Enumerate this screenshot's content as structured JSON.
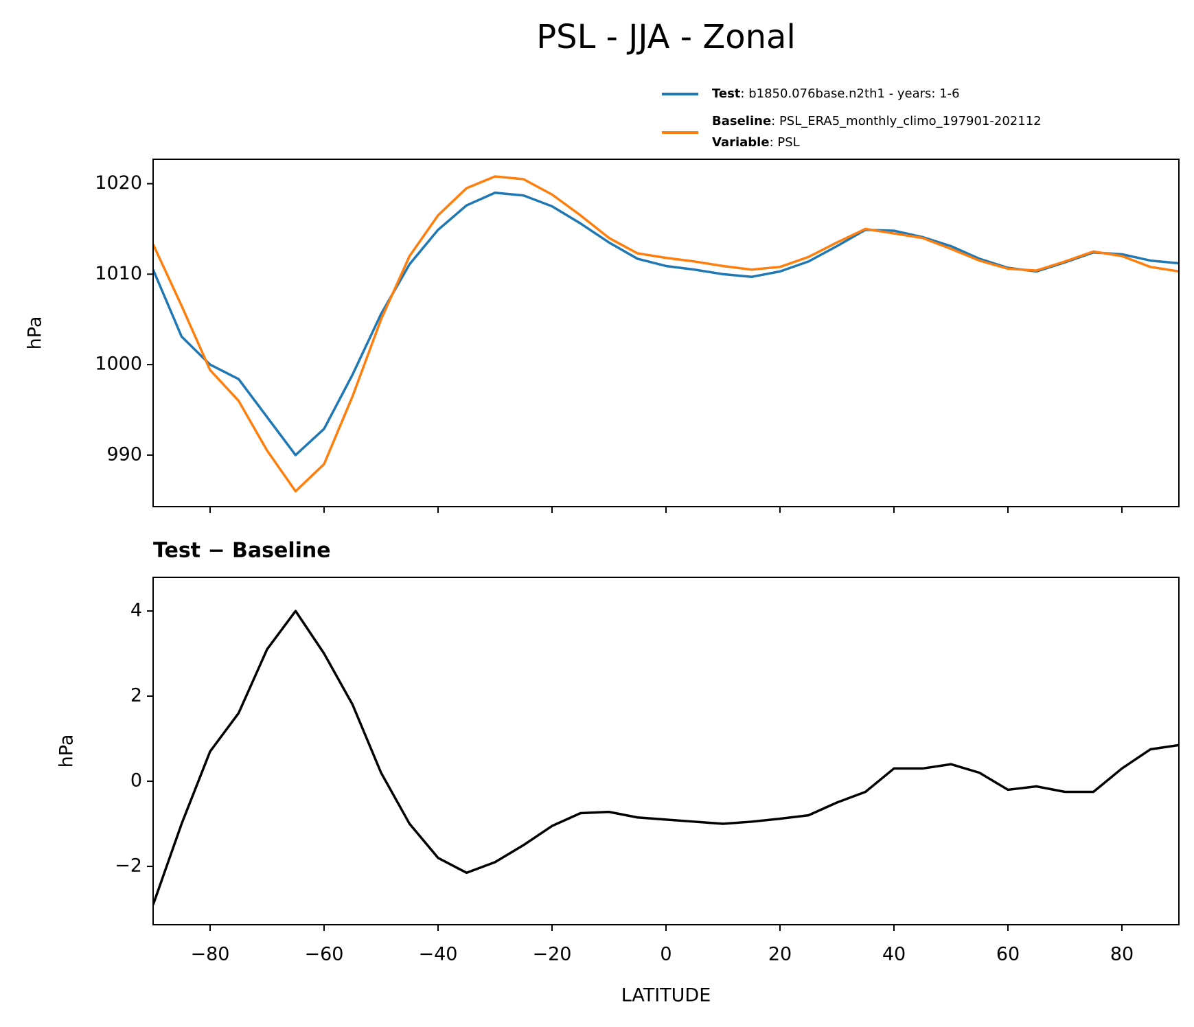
{
  "chart_data": [
    {
      "type": "line",
      "title": "PSL - JJA - Zonal",
      "ylabel": "hPa",
      "x": [
        -90,
        -85,
        -80,
        -75,
        -70,
        -65,
        -60,
        -55,
        -50,
        -45,
        -40,
        -35,
        -30,
        -25,
        -20,
        -15,
        -10,
        -5,
        0,
        5,
        10,
        15,
        20,
        25,
        30,
        35,
        40,
        45,
        50,
        55,
        60,
        65,
        70,
        75,
        80,
        85,
        90
      ],
      "series": [
        {
          "name": "Test",
          "info": ": b1850.076base.n2th1 - years: 1-6",
          "color": "#1f77b4",
          "values": [
            1010.5,
            1003.1,
            1000.0,
            998.4,
            994.2,
            990.0,
            992.9,
            998.9,
            1005.6,
            1011.1,
            1014.9,
            1017.6,
            1019.0,
            1018.7,
            1017.5,
            1015.6,
            1013.5,
            1011.7,
            1010.9,
            1010.5,
            1010.0,
            1009.7,
            1010.3,
            1011.4,
            1013.1,
            1014.9,
            1014.8,
            1014.1,
            1013.1,
            1011.7,
            1010.7,
            1010.3,
            1011.3,
            1012.4,
            1012.2,
            1011.5,
            1011.2
          ]
        },
        {
          "name": "Baseline",
          "info": ": PSL_ERA5_monthly_climo_197901-202112",
          "color": "#ff7f0e",
          "values": [
            1013.3,
            1006.5,
            999.4,
            996.0,
            990.5,
            986.0,
            989.0,
            996.5,
            1005.0,
            1012.0,
            1016.5,
            1019.5,
            1020.8,
            1020.5,
            1018.8,
            1016.5,
            1014.0,
            1012.3,
            1011.8,
            1011.4,
            1010.9,
            1010.5,
            1010.8,
            1011.9,
            1013.5,
            1015.0,
            1014.5,
            1014.0,
            1012.8,
            1011.5,
            1010.6,
            1010.4,
            1011.4,
            1012.5,
            1012.0,
            1010.8,
            1010.3
          ]
        }
      ],
      "legend_extra": {
        "name": "Variable",
        "info": ": PSL"
      },
      "xlim": [
        -90,
        90
      ],
      "xticks": [
        -80,
        -60,
        -40,
        -20,
        0,
        20,
        40,
        60,
        80
      ],
      "ylim": [
        984.3,
        1022.7
      ],
      "yticks": [
        990,
        1000,
        1010,
        1020
      ]
    },
    {
      "type": "line",
      "title": "Test − Baseline",
      "ylabel": "hPa",
      "xlabel": "LATITUDE",
      "color": "#000000",
      "x": [
        -90,
        -85,
        -80,
        -75,
        -70,
        -65,
        -60,
        -55,
        -50,
        -45,
        -40,
        -35,
        -30,
        -25,
        -20,
        -15,
        -10,
        -5,
        0,
        5,
        10,
        15,
        20,
        25,
        30,
        35,
        40,
        45,
        50,
        55,
        60,
        65,
        70,
        75,
        80,
        85,
        90
      ],
      "values": [
        -2.9,
        -1.0,
        0.7,
        1.6,
        3.1,
        4.0,
        3.0,
        1.8,
        0.2,
        -1.0,
        -1.8,
        -2.15,
        -1.9,
        -1.5,
        -1.05,
        -0.75,
        -0.72,
        -0.85,
        -0.9,
        -0.95,
        -1.0,
        -0.95,
        -0.88,
        -0.8,
        -0.5,
        -0.25,
        0.3,
        0.3,
        0.4,
        0.2,
        -0.2,
        -0.12,
        -0.25,
        -0.25,
        0.3,
        0.75,
        0.85
      ],
      "xlim": [
        -90,
        90
      ],
      "xticks": [
        {
          "value": -80,
          "label": "−80"
        },
        {
          "value": -60,
          "label": "−60"
        },
        {
          "value": -40,
          "label": "−40"
        },
        {
          "value": -20,
          "label": "−20"
        },
        0,
        20,
        40,
        60,
        80
      ],
      "ylim": [
        -3.37,
        4.79
      ],
      "yticks": [
        {
          "value": -2,
          "label": "−2"
        },
        0,
        2,
        4
      ]
    }
  ]
}
